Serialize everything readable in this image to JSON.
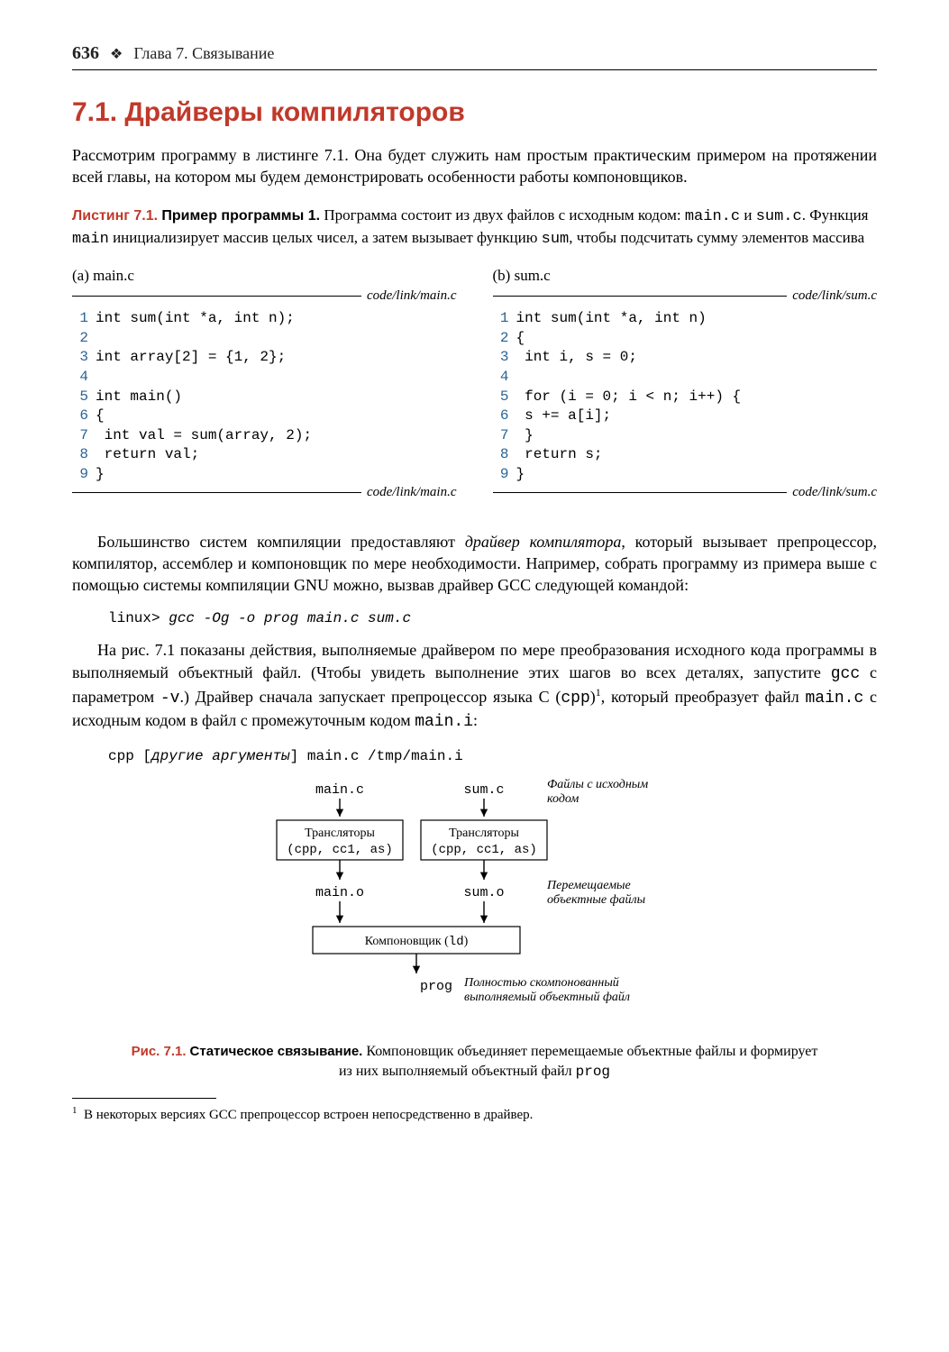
{
  "header": {
    "page_number": "636",
    "diamond": "❖",
    "chapter": "Глава 7. Связывание"
  },
  "section": {
    "number_title": "7.1. Драйверы компиляторов"
  },
  "intro_p1": "Рассмотрим программу в листинге 7.1. Она будет служить нам простым практическим примером на протяжении всей главы, на котором мы будем демонстрировать особенности работы компоновщиков.",
  "listing_caption": {
    "label": "Листинг 7.1.",
    "title": "Пример программы 1.",
    "text_before": " Программа состоит из двух файлов с исходным кодом: ",
    "code1": "main.c",
    "mid1": " и ",
    "code2": "sum.c",
    "mid2": ". Функция ",
    "code3": "main",
    "mid3": " инициализирует массив целых чисел, а затем вызывает функцию ",
    "code4": "sum",
    "tail": ", чтобы подсчитать сумму элементов массива"
  },
  "listing_a": {
    "label": "(a) main.c",
    "path": "code/link/main.c",
    "lines": [
      "int sum(int *a, int n);",
      "",
      "int array[2] = {1, 2};",
      "",
      "int main()",
      "{",
      "    int val = sum(array, 2);",
      "    return val;",
      "}"
    ]
  },
  "listing_b": {
    "label": "(b) sum.c",
    "path": "code/link/sum.c",
    "lines": [
      "int sum(int *a, int n)",
      "{",
      "    int i, s = 0;",
      "",
      "    for (i = 0; i < n; i++) {",
      "        s += a[i];",
      "    }",
      "    return s;",
      "}"
    ]
  },
  "para2_parts": {
    "a": "Большинство систем компиляции предоставляют ",
    "i1": "драйвер компилятора",
    "b": ", который вызывает препроцессор, компилятор, ассемблер и компоновщик по мере необходимости. Например, собрать программу из примера выше с помощью системы компиляции GNU можно, вызвав драйвер GCC следующей командой:"
  },
  "cmd1": {
    "prompt": "linux> ",
    "cmd": "gcc -Og -o prog main.c sum.c"
  },
  "para3_parts": {
    "a": "На рис. 7.1 показаны действия, выполняемые драйвером по мере преобразования исходного кода программы в выполняемый объектный файл. (Чтобы увидеть выполнение этих шагов во всех деталях, запустите ",
    "c1": "gcc",
    "b": " с параметром ",
    "c2": "-v",
    "c": ".) Драйвер сначала запускает препроцессор языка C (",
    "c3": "cpp",
    "d": ")",
    "sup": "1",
    "e": ", который преобразует файл ",
    "c4": "main.c",
    "f": " с исходным кодом в файл с промежуточным кодом ",
    "c5": "main.i",
    "g": ":"
  },
  "cmd2": {
    "a": "cpp [",
    "i": "другие аргументы",
    "b": "] main.c /tmp/main.i"
  },
  "diagram": {
    "main_c": "main.c",
    "sum_c": "sum.c",
    "src_label_l1": "Файлы с исходным",
    "src_label_l2": "кодом",
    "translators": "Трансляторы",
    "translators_sub": "(cpp, cc1, as)",
    "main_o": "main.o",
    "sum_o": "sum.o",
    "obj_label_l1": "Перемещаемые",
    "obj_label_l2": "объектные файлы",
    "linker": "Компоновщик (ld)",
    "prog": "prog",
    "exe_label_l1": "Полностью скомпонованный",
    "exe_label_l2": "выполняемый объектный файл"
  },
  "figure_caption": {
    "label": "Рис. 7.1.",
    "title": "Статическое связывание.",
    "text": " Компоновщик объединяет перемещаемые объектные файлы и формирует из них выполняемый объектный файл ",
    "code": "prog"
  },
  "footnote": {
    "num": "1",
    "text": "В некоторых версиях GCC препроцессор встроен непосредственно в драйвер."
  }
}
